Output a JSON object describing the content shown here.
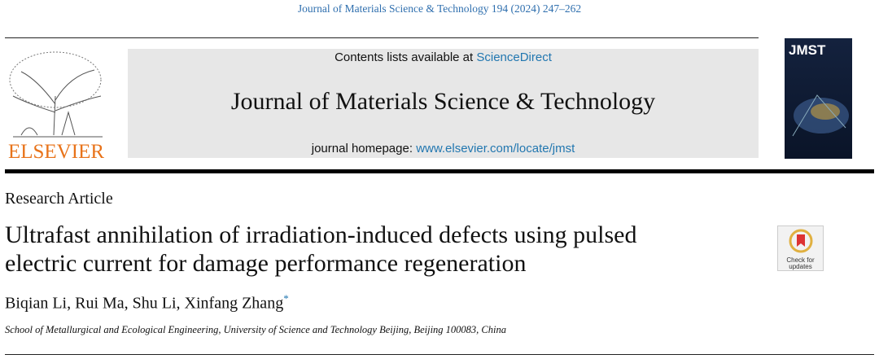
{
  "header": {
    "citation": "Journal of Materials Science & Technology 194 (2024) 247–262"
  },
  "publisher": "ELSEVIER",
  "banner": {
    "contents_prefix": "Contents lists available at",
    "contents_link": "ScienceDirect",
    "journal_title": "Journal of Materials Science & Technology",
    "homepage_prefix": "journal homepage:",
    "homepage_link": "www.elsevier.com/locate/jmst"
  },
  "cover": {
    "title": "JMST"
  },
  "badge": {
    "line1": "Check for",
    "line2": "updates"
  },
  "article": {
    "type": "Research Article",
    "title_lines": [
      "Ultrafast annihilation of irradiation-induced defects using pulsed",
      "electric current for damage performance regeneration"
    ],
    "authors": "Biqian Li, Rui Ma, Shu Li, Xinfang Zhang",
    "corresponding_mark": "*",
    "affiliation": "School of Metallurgical and Ecological Engineering, University of Science and Technology Beijing, Beijing 100083, China"
  }
}
